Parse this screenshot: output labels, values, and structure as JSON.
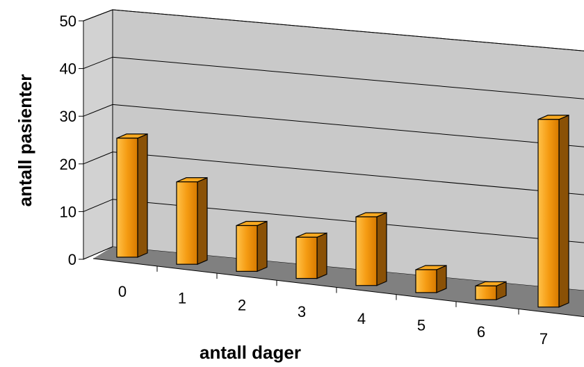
{
  "chart_data": {
    "type": "bar",
    "title": "",
    "xlabel": "antall dager",
    "ylabel": "antall pasienter",
    "categories": [
      "0",
      "1",
      "2",
      "3",
      "4",
      "5",
      "6",
      "7"
    ],
    "values": [
      26,
      18,
      10,
      9,
      15,
      5,
      3,
      41
    ],
    "ylim": [
      0,
      50
    ],
    "yticks": [
      "0",
      "10",
      "20",
      "30",
      "40",
      "50"
    ],
    "grid": true,
    "legend": "none",
    "colors": {
      "bar_front": "#f59b12",
      "bar_side": "#8a5106",
      "bar_top": "#f7a820",
      "wall": "#c9c9c9",
      "floor": "#808080",
      "outline": "#000000"
    }
  }
}
